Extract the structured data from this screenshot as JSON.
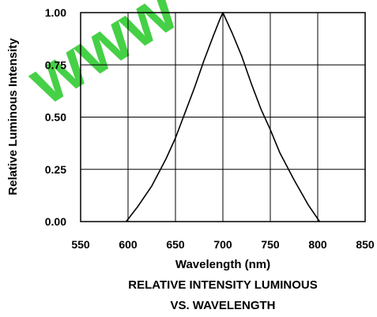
{
  "watermark": {
    "text": "www",
    "color": "#33cc33"
  },
  "chart_data": {
    "type": "line",
    "title": "RELATIVE INTENSITY LUMINOUS",
    "subtitle": "VS. WAVELENGTH",
    "xlabel": "Wavelength (nm)",
    "ylabel": "Relative Luminous Intensity",
    "xlim": [
      550,
      850
    ],
    "ylim": [
      0,
      1
    ],
    "x_ticks": [
      550,
      600,
      650,
      700,
      750,
      800,
      850
    ],
    "y_ticks": [
      0,
      0.25,
      0.5,
      0.75,
      1
    ],
    "x_tick_labels": [
      "550",
      "600",
      "650",
      "700",
      "750",
      "800",
      "850"
    ],
    "y_tick_labels": [
      "0.00",
      "0.25",
      "0.50",
      "0.75",
      "1.00"
    ],
    "grid": true,
    "legend": "none",
    "series": [
      {
        "color": "#000000",
        "x": [
          598,
          610,
          625,
          640,
          650,
          660,
          670,
          680,
          690,
          697,
          700,
          703,
          710,
          720,
          730,
          740,
          750,
          760,
          775,
          790,
          802
        ],
        "y": [
          0.0,
          0.07,
          0.17,
          0.3,
          0.4,
          0.52,
          0.64,
          0.77,
          0.89,
          0.97,
          1.0,
          0.97,
          0.9,
          0.79,
          0.66,
          0.54,
          0.44,
          0.33,
          0.2,
          0.08,
          0.0
        ]
      }
    ]
  }
}
